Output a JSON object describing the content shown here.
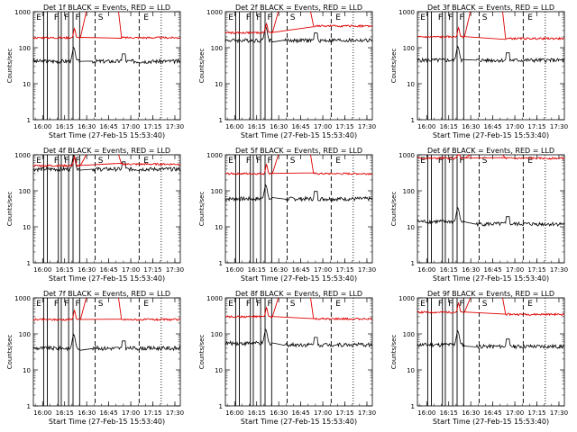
{
  "figure": {
    "panel_titles_note": "Each panel title combines detector name with legend text",
    "legend_text": "BLACK = Events, RED = LLD",
    "start_time_label": "Start Time (27-Feb-15 15:53:40)",
    "ylabel": "Counts/sec",
    "ytick_labels": [
      "1",
      "10",
      "100",
      "1000"
    ],
    "xtick_labels": [
      "16:00",
      "16:15",
      "16:30",
      "16:45",
      "17:00",
      "17:15",
      "17:30"
    ],
    "marker_letters": [
      "E",
      "F",
      "F",
      "F",
      "S",
      "E"
    ],
    "colors": {
      "events": "#000000",
      "lld": "#e00000"
    }
  },
  "chart_data": [
    {
      "type": "line",
      "title": "Det 1f",
      "ylog": true,
      "ylim": [
        1,
        1000
      ],
      "series": [
        {
          "name": "Events",
          "level_before": 42,
          "level_after": 42
        },
        {
          "name": "LLD",
          "level_before": 190,
          "level_after": 190
        }
      ]
    },
    {
      "type": "line",
      "title": "Det 2f",
      "ylog": true,
      "ylim": [
        1,
        1000
      ],
      "series": [
        {
          "name": "Events",
          "level_before": 160,
          "level_after": 160
        },
        {
          "name": "LLD",
          "level_before": 260,
          "level_after": 400
        }
      ]
    },
    {
      "type": "line",
      "title": "Det 3f",
      "ylog": true,
      "ylim": [
        1,
        1000
      ],
      "series": [
        {
          "name": "Events",
          "level_before": 45,
          "level_after": 45
        },
        {
          "name": "LLD",
          "level_before": 200,
          "level_after": 180
        }
      ]
    },
    {
      "type": "line",
      "title": "Det 4f",
      "ylog": true,
      "ylim": [
        1,
        1000
      ],
      "series": [
        {
          "name": "Events",
          "level_before": 400,
          "level_after": 400
        },
        {
          "name": "LLD",
          "level_before": 500,
          "level_after": 550
        }
      ]
    },
    {
      "type": "line",
      "title": "Det 5f",
      "ylog": true,
      "ylim": [
        1,
        1000
      ],
      "series": [
        {
          "name": "Events",
          "level_before": 60,
          "level_after": 60
        },
        {
          "name": "LLD",
          "level_before": 300,
          "level_after": 300
        }
      ]
    },
    {
      "type": "line",
      "title": "Det 6f",
      "ylog": true,
      "ylim": [
        1,
        1000
      ],
      "series": [
        {
          "name": "Events",
          "level_before": 14,
          "level_after": 12
        },
        {
          "name": "LLD",
          "level_before": 800,
          "level_after": 800
        }
      ]
    },
    {
      "type": "line",
      "title": "Det 7f",
      "ylog": true,
      "ylim": [
        1,
        1000
      ],
      "series": [
        {
          "name": "Events",
          "level_before": 40,
          "level_after": 40
        },
        {
          "name": "LLD",
          "level_before": 250,
          "level_after": 250
        }
      ]
    },
    {
      "type": "line",
      "title": "Det 8f",
      "ylog": true,
      "ylim": [
        1,
        1000
      ],
      "series": [
        {
          "name": "Events",
          "level_before": 55,
          "level_after": 50
        },
        {
          "name": "LLD",
          "level_before": 300,
          "level_after": 260
        }
      ]
    },
    {
      "type": "line",
      "title": "Det 9f",
      "ylog": true,
      "ylim": [
        1,
        1000
      ],
      "series": [
        {
          "name": "Events",
          "level_before": 50,
          "level_after": 45
        },
        {
          "name": "LLD",
          "level_before": 400,
          "level_after": 350
        }
      ]
    }
  ]
}
